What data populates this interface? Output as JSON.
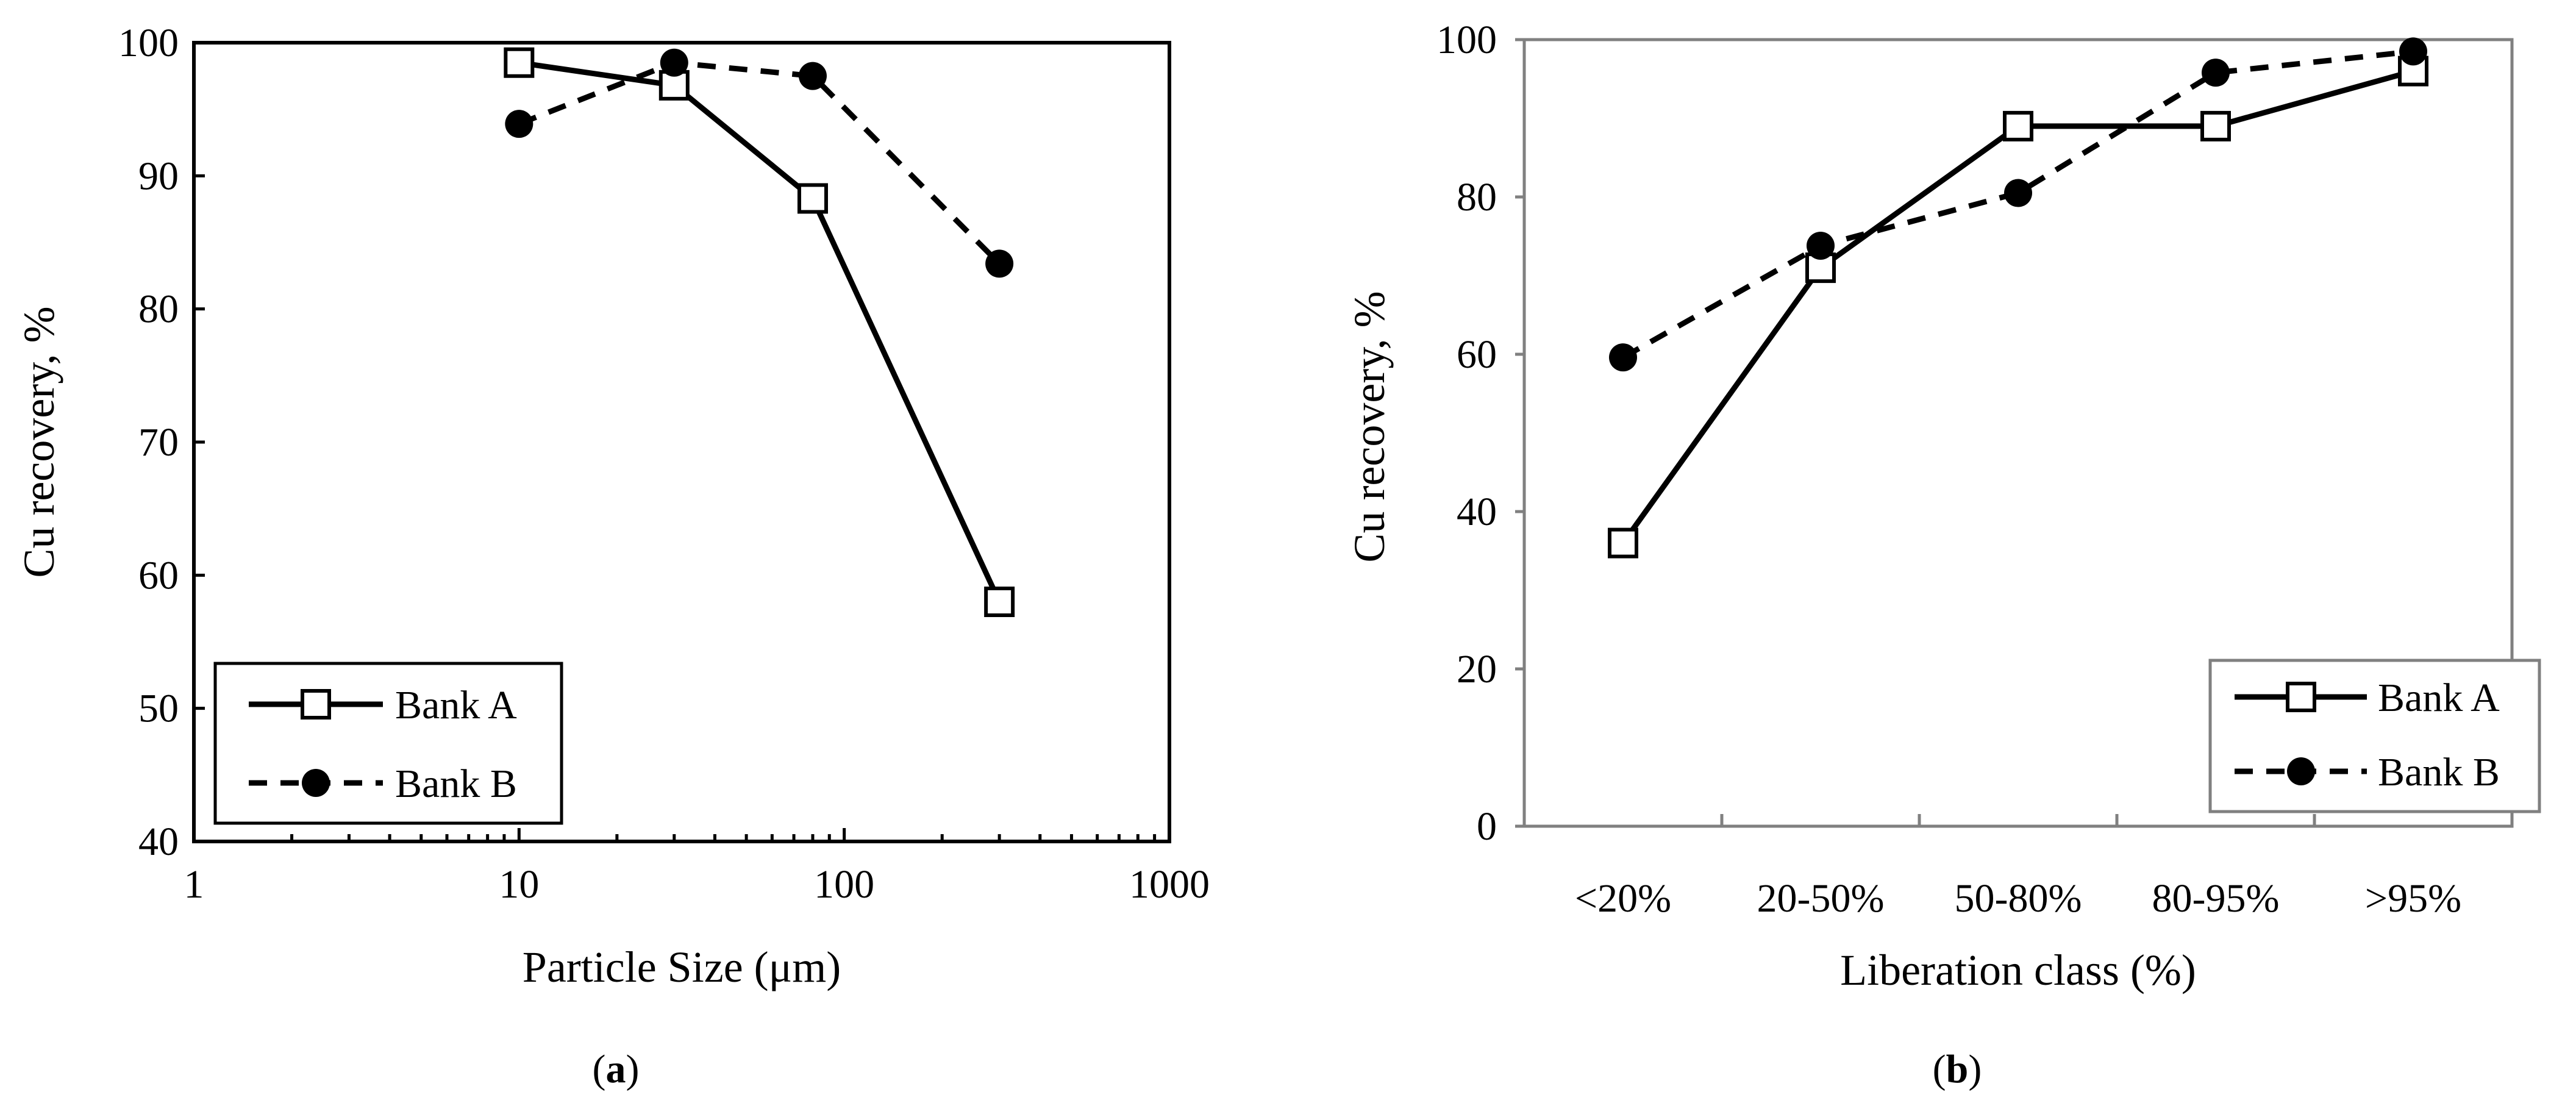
{
  "chart_data": [
    {
      "type": "line",
      "panel": "a",
      "xscale": "log",
      "xlim": [
        1,
        1000
      ],
      "ylim": [
        40,
        100
      ],
      "xticks": [
        1,
        10,
        100,
        1000
      ],
      "xtick_labels": [
        "1",
        "10",
        "100",
        "1000"
      ],
      "yticks": [
        40,
        50,
        60,
        70,
        80,
        90,
        100
      ],
      "ytick_labels": [
        "40",
        "50",
        "60",
        "70",
        "80",
        "90",
        "100"
      ],
      "xlabel": "Particle Size (μm)",
      "ylabel": "Cu recovery, %",
      "caption": {
        "open": "(",
        "letter": "a",
        "close": ")"
      },
      "legend_position": "bottom-left",
      "series": [
        {
          "name": "Bank A",
          "style": "solid",
          "marker": "open-square",
          "x": [
            10,
            30,
            80,
            300
          ],
          "y": [
            98.5,
            96.8,
            88.3,
            58.0
          ]
        },
        {
          "name": "Bank B",
          "style": "dashed",
          "marker": "filled-circle",
          "x": [
            10,
            30,
            80,
            300
          ],
          "y": [
            93.9,
            98.5,
            97.5,
            83.4
          ]
        }
      ]
    },
    {
      "type": "line",
      "panel": "b",
      "categories": [
        "<20%",
        "20-50%",
        "50-80%",
        "80-95%",
        ">95%"
      ],
      "ylim": [
        0,
        100
      ],
      "yticks": [
        0,
        20,
        40,
        60,
        80,
        100
      ],
      "ytick_labels": [
        "0",
        "20",
        "40",
        "60",
        "80",
        "100"
      ],
      "xlabel": "Liberation class (%)",
      "ylabel": "Cu recovery, %",
      "caption": {
        "open": "(",
        "letter": "b",
        "close": ")"
      },
      "legend_position": "bottom-right",
      "series": [
        {
          "name": "Bank A",
          "style": "solid",
          "marker": "open-square",
          "values": [
            36.0,
            71.0,
            89.0,
            89.0,
            96.0
          ]
        },
        {
          "name": "Bank B",
          "style": "dashed",
          "marker": "filled-circle",
          "values": [
            59.6,
            73.8,
            80.5,
            95.8,
            98.5
          ]
        }
      ]
    }
  ]
}
